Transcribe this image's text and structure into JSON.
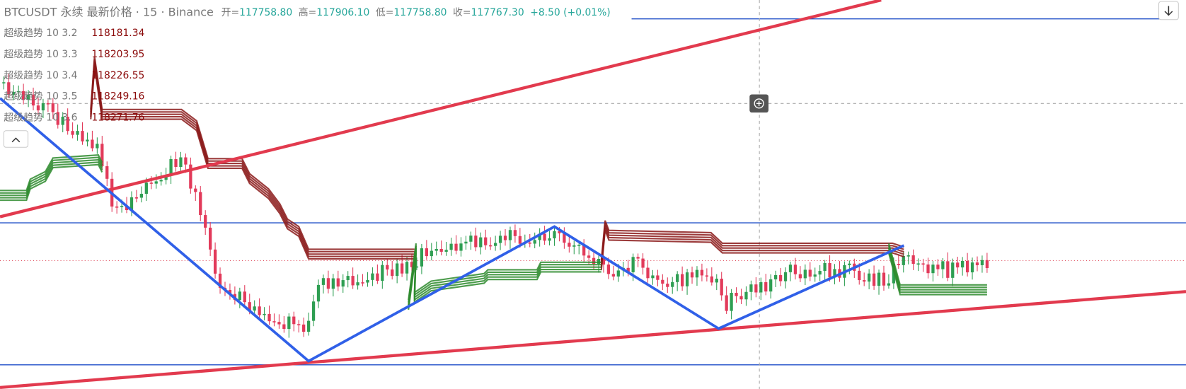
{
  "header": {
    "symbol": "BTCUSDT 永续 最新价格 · 15 · Binance",
    "ohlc": [
      {
        "label": "开=",
        "value": "117758.80"
      },
      {
        "label": "高=",
        "value": "117906.10"
      },
      {
        "label": "低=",
        "value": "117758.80"
      },
      {
        "label": "收=",
        "value": "117767.30"
      }
    ],
    "change": "+8.50 (+0.01%)"
  },
  "indicators": [
    {
      "name": "超级趋势 10 3.2",
      "value": "118181.34"
    },
    {
      "name": "超级趋势 10 3.3",
      "value": "118203.95"
    },
    {
      "name": "超级趋势 10 3.4",
      "value": "118226.55"
    },
    {
      "name": "超级趋势 10 3.5",
      "value": "118249.16"
    },
    {
      "name": "超级趋势 10 3.6",
      "value": "118271.76"
    }
  ]
}
